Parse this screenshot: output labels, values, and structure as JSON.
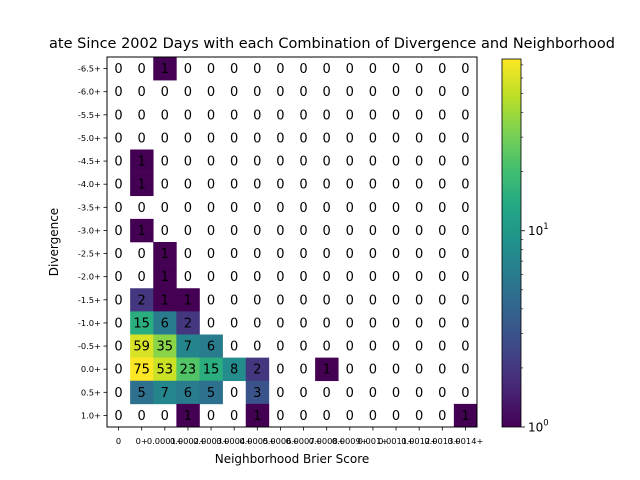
{
  "chart_data": {
    "type": "heatmap",
    "title": "ate Since 2002 Days with each Combination of Divergence and Neighborhood",
    "xlabel": "Neighborhood Brier Score",
    "ylabel": "Divergence",
    "x_categories": [
      "0",
      "0+",
      "0.0001+",
      "0.0002+",
      "0.0003+",
      "0.0004+",
      "0.0005+",
      "0.0006+",
      "0.0007+",
      "0.0008+",
      "0.0009+",
      "0.001+",
      "0.0011+",
      "0.0012+",
      "0.0013+",
      "0.0014+"
    ],
    "x_tick_display": [
      "0",
      "0+",
      "0.0001+",
      "0.0002+",
      "0.0003+",
      "0.0004+",
      "0.0005+",
      "0.0006+",
      "0.0007+",
      "0.0008+",
      "0.0009+",
      "0.001+",
      "0.0011+",
      "0.0012+",
      "0.0013+",
      "0.0014+"
    ],
    "y_categories": [
      "-6.5+",
      "-6.0+",
      "-5.5+",
      "-5.0+",
      "-4.5+",
      "-4.0+",
      "-3.5+",
      "-3.0+",
      "-2.5+",
      "-2.0+",
      "-1.5+",
      "-1.0+",
      "-0.5+",
      "0.0+",
      "0.5+",
      "1.0+"
    ],
    "values": [
      [
        0,
        0,
        1,
        0,
        0,
        0,
        0,
        0,
        0,
        0,
        0,
        0,
        0,
        0,
        0,
        0
      ],
      [
        0,
        0,
        0,
        0,
        0,
        0,
        0,
        0,
        0,
        0,
        0,
        0,
        0,
        0,
        0,
        0
      ],
      [
        0,
        0,
        0,
        0,
        0,
        0,
        0,
        0,
        0,
        0,
        0,
        0,
        0,
        0,
        0,
        0
      ],
      [
        0,
        0,
        0,
        0,
        0,
        0,
        0,
        0,
        0,
        0,
        0,
        0,
        0,
        0,
        0,
        0
      ],
      [
        0,
        1,
        0,
        0,
        0,
        0,
        0,
        0,
        0,
        0,
        0,
        0,
        0,
        0,
        0,
        0
      ],
      [
        0,
        1,
        0,
        0,
        0,
        0,
        0,
        0,
        0,
        0,
        0,
        0,
        0,
        0,
        0,
        0
      ],
      [
        0,
        0,
        0,
        0,
        0,
        0,
        0,
        0,
        0,
        0,
        0,
        0,
        0,
        0,
        0,
        0
      ],
      [
        0,
        1,
        0,
        0,
        0,
        0,
        0,
        0,
        0,
        0,
        0,
        0,
        0,
        0,
        0,
        0
      ],
      [
        0,
        0,
        1,
        0,
        0,
        0,
        0,
        0,
        0,
        0,
        0,
        0,
        0,
        0,
        0,
        0
      ],
      [
        0,
        0,
        1,
        0,
        0,
        0,
        0,
        0,
        0,
        0,
        0,
        0,
        0,
        0,
        0,
        0
      ],
      [
        0,
        2,
        1,
        1,
        0,
        0,
        0,
        0,
        0,
        0,
        0,
        0,
        0,
        0,
        0,
        0
      ],
      [
        0,
        15,
        6,
        2,
        0,
        0,
        0,
        0,
        0,
        0,
        0,
        0,
        0,
        0,
        0,
        0
      ],
      [
        0,
        59,
        35,
        7,
        6,
        0,
        0,
        0,
        0,
        0,
        0,
        0,
        0,
        0,
        0,
        0
      ],
      [
        0,
        75,
        53,
        23,
        15,
        8,
        2,
        0,
        0,
        1,
        0,
        0,
        0,
        0,
        0,
        0
      ],
      [
        0,
        5,
        7,
        6,
        5,
        0,
        3,
        0,
        0,
        0,
        0,
        0,
        0,
        0,
        0,
        0
      ],
      [
        0,
        0,
        0,
        1,
        0,
        0,
        1,
        0,
        0,
        0,
        0,
        0,
        0,
        0,
        0,
        1
      ]
    ],
    "colorbar": {
      "scale": "log",
      "range": [
        1,
        75
      ],
      "colormap": "viridis",
      "tick_labels": [
        "10",
        "1",
        "0",
        "0",
        "1",
        "1",
        "1"
      ],
      "tick_values": [
        1,
        10
      ],
      "tick_text": [
        {
          "base": "10",
          "exp": "0"
        },
        {
          "base": "10",
          "exp": "1"
        }
      ]
    },
    "zero_cells_color": "#ffffff"
  }
}
